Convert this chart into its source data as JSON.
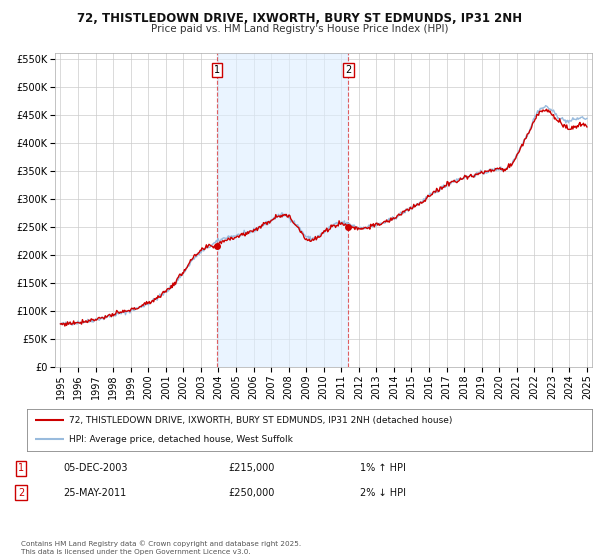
{
  "title_line1": "72, THISTLEDOWN DRIVE, IXWORTH, BURY ST EDMUNDS, IP31 2NH",
  "title_line2": "Price paid vs. HM Land Registry's House Price Index (HPI)",
  "ylim": [
    0,
    560000
  ],
  "yticks": [
    0,
    50000,
    100000,
    150000,
    200000,
    250000,
    300000,
    350000,
    400000,
    450000,
    500000,
    550000
  ],
  "ytick_labels": [
    "£0",
    "£50K",
    "£100K",
    "£150K",
    "£200K",
    "£250K",
    "£300K",
    "£350K",
    "£400K",
    "£450K",
    "£500K",
    "£550K"
  ],
  "xlim_start": 1994.7,
  "xlim_end": 2025.3,
  "xticks": [
    1995,
    1996,
    1997,
    1998,
    1999,
    2000,
    2001,
    2002,
    2003,
    2004,
    2005,
    2006,
    2007,
    2008,
    2009,
    2010,
    2011,
    2012,
    2013,
    2014,
    2015,
    2016,
    2017,
    2018,
    2019,
    2020,
    2021,
    2022,
    2023,
    2024,
    2025
  ],
  "sale_color": "#cc0000",
  "hpi_color": "#99bbdd",
  "vline_color": "#dd4444",
  "shade_color": "#ddeeff",
  "transaction1_x": 2003.92,
  "transaction1_y": 215000,
  "transaction2_x": 2011.39,
  "transaction2_y": 250000,
  "legend_sale_label": "72, THISTLEDOWN DRIVE, IXWORTH, BURY ST EDMUNDS, IP31 2NH (detached house)",
  "legend_hpi_label": "HPI: Average price, detached house, West Suffolk",
  "note1_date": "05-DEC-2003",
  "note1_price": "£215,000",
  "note1_hpi": "1% ↑ HPI",
  "note2_date": "25-MAY-2011",
  "note2_price": "£250,000",
  "note2_hpi": "2% ↓ HPI",
  "footer": "Contains HM Land Registry data © Crown copyright and database right 2025.\nThis data is licensed under the Open Government Licence v3.0.",
  "background_color": "#ffffff",
  "grid_color": "#cccccc"
}
